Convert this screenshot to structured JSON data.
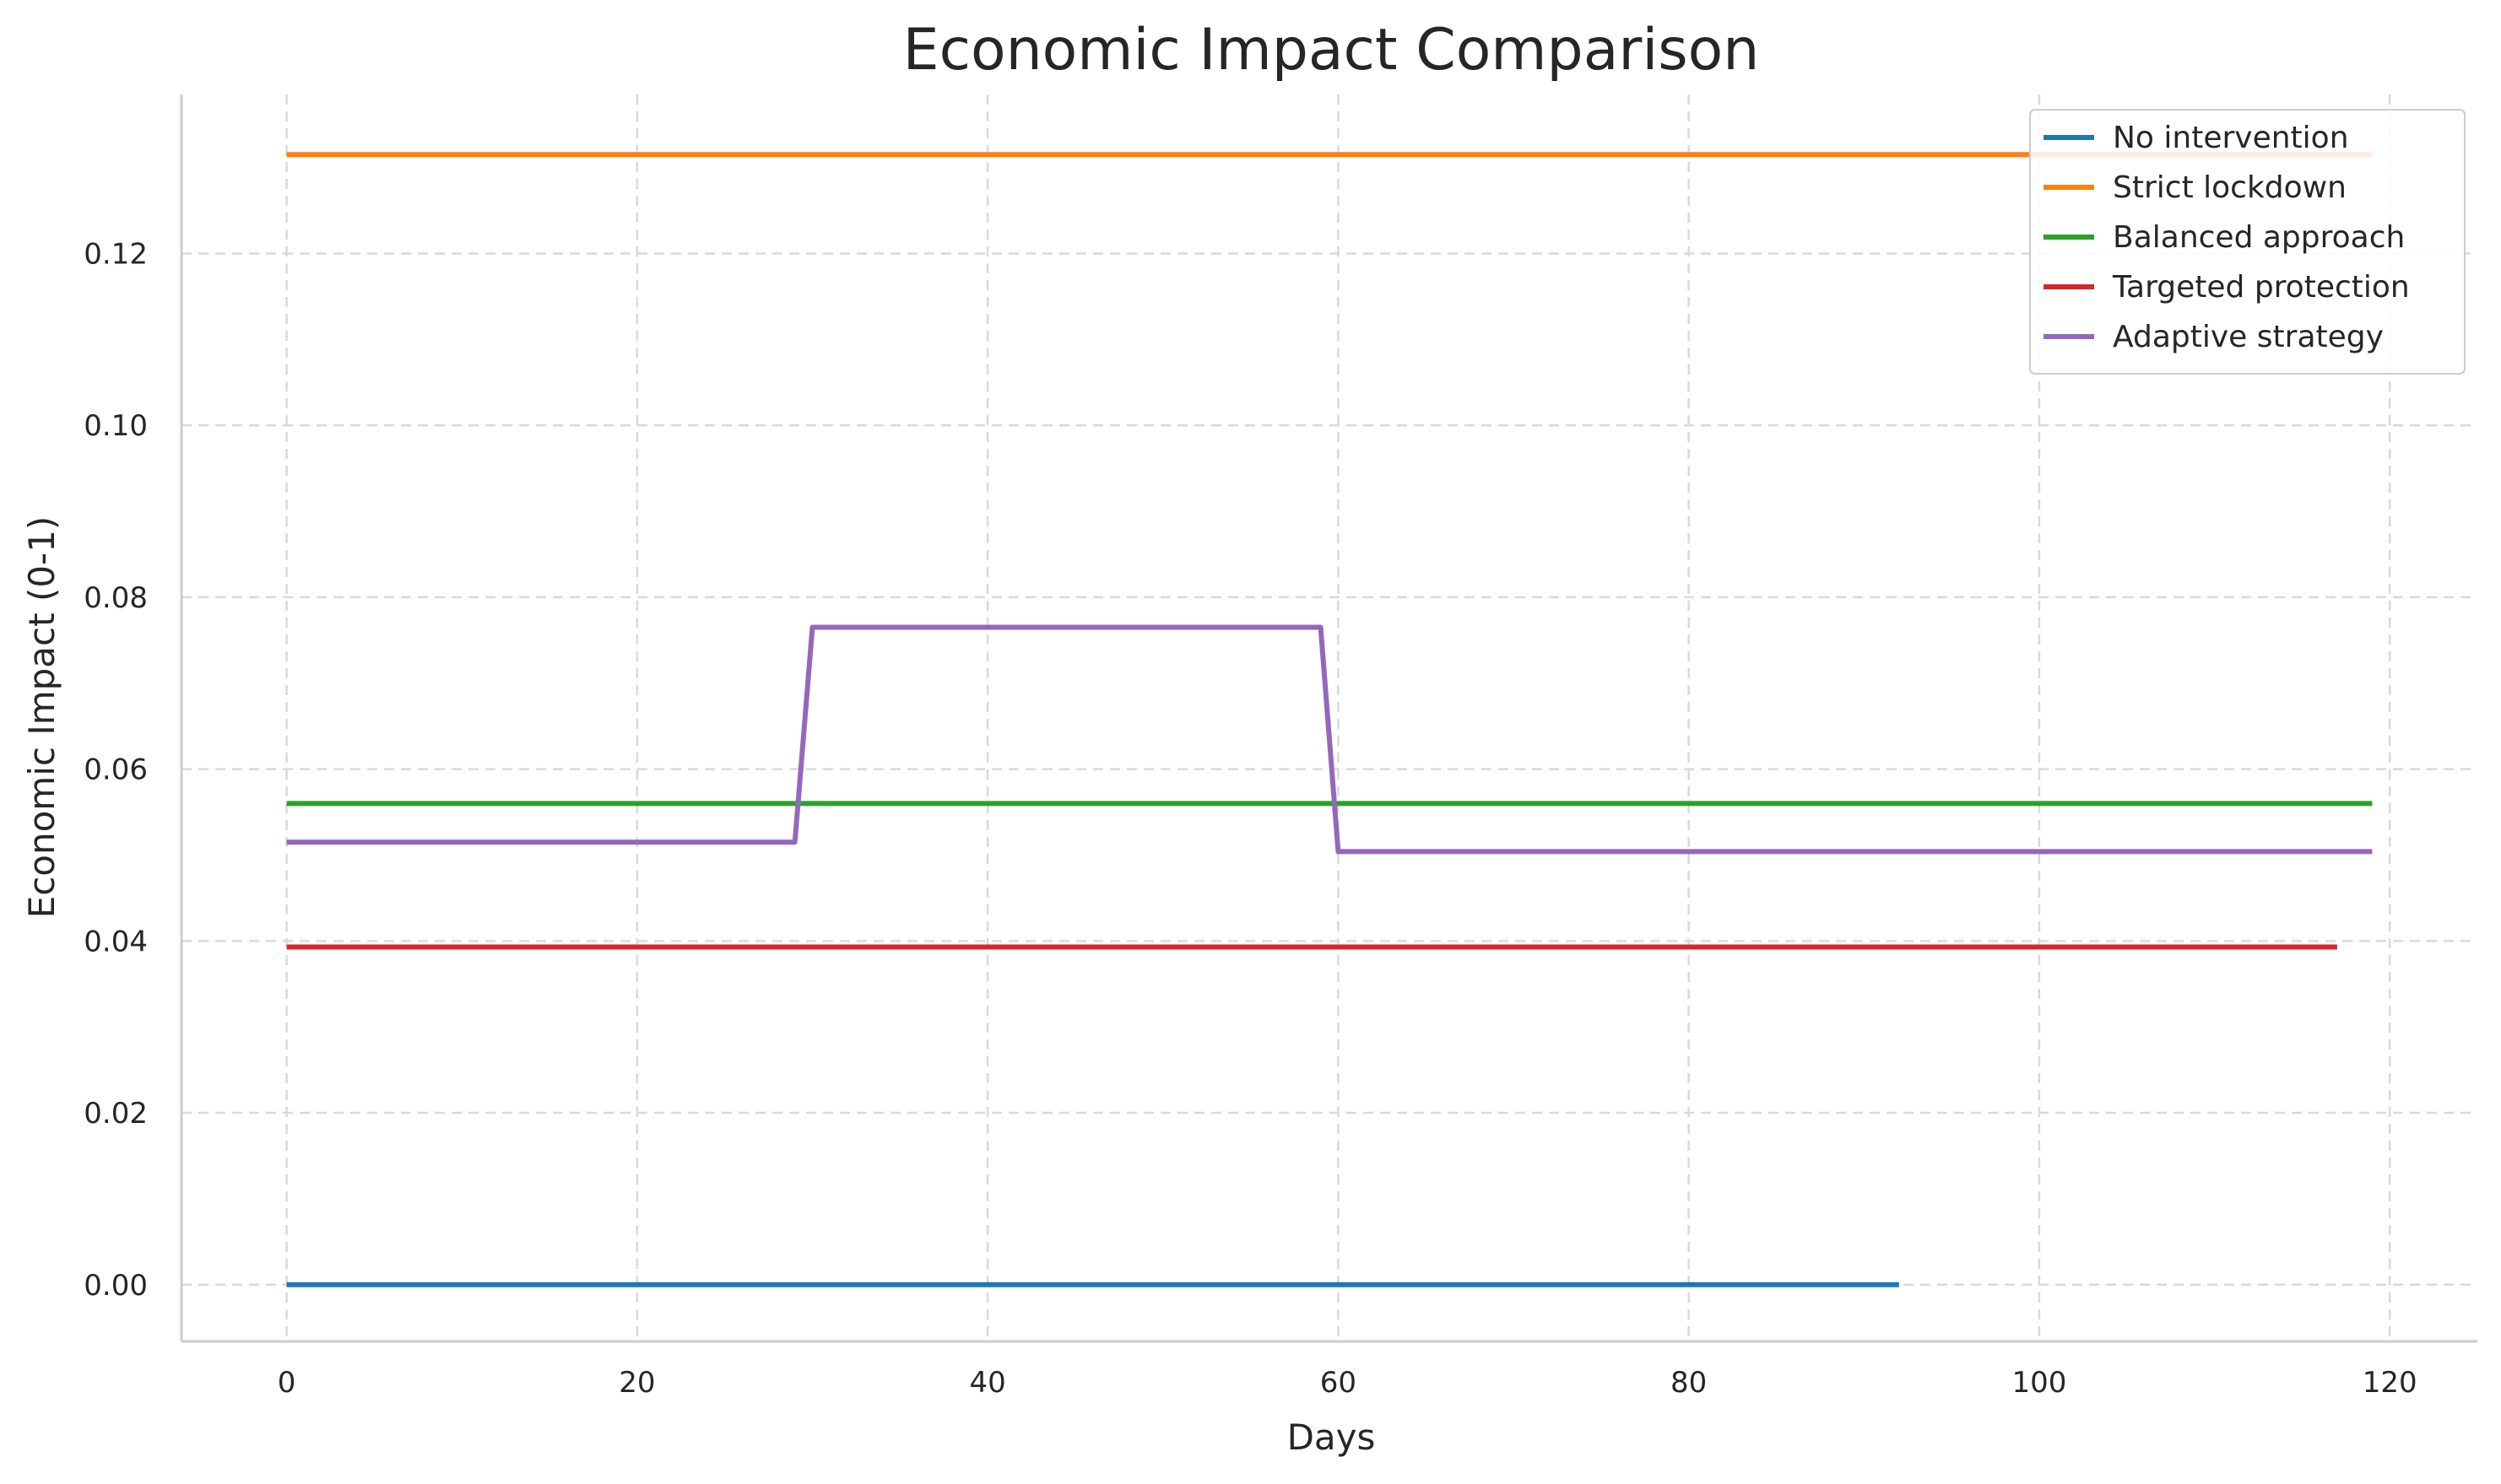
{
  "chart_data": {
    "type": "line",
    "title": "Economic Impact Comparison",
    "xlabel": "Days",
    "ylabel": "Economic Impact (0-1)",
    "xlim": [
      -6,
      125
    ],
    "ylim": [
      -0.0066,
      0.1385
    ],
    "xticks": [
      0,
      20,
      40,
      60,
      80,
      100,
      120
    ],
    "xtick_labels": [
      "0",
      "20",
      "40",
      "60",
      "80",
      "100",
      "120"
    ],
    "yticks": [
      0.0,
      0.02,
      0.04,
      0.06,
      0.08,
      0.1,
      0.12
    ],
    "ytick_labels": [
      "0.00",
      "0.02",
      "0.04",
      "0.06",
      "0.08",
      "0.10",
      "0.12"
    ],
    "grid": true,
    "legend_position": "top-right",
    "series": [
      {
        "name": "No intervention",
        "color": "#1f77b4",
        "x": [
          0,
          92
        ],
        "y": [
          0.0,
          0.0
        ]
      },
      {
        "name": "Strict lockdown",
        "color": "#ff7f0e",
        "x": [
          0,
          119
        ],
        "y": [
          0.1315,
          0.1315
        ]
      },
      {
        "name": "Balanced approach",
        "color": "#2ca02c",
        "x": [
          0,
          119
        ],
        "y": [
          0.056,
          0.056
        ]
      },
      {
        "name": "Targeted protection",
        "color": "#d62728",
        "x": [
          0,
          117
        ],
        "y": [
          0.0393,
          0.0393
        ]
      },
      {
        "name": "Adaptive strategy",
        "color": "#9467bd",
        "x": [
          0,
          29,
          30,
          59,
          60,
          119
        ],
        "y": [
          0.0515,
          0.0515,
          0.0765,
          0.0765,
          0.0504,
          0.0504
        ]
      }
    ]
  }
}
